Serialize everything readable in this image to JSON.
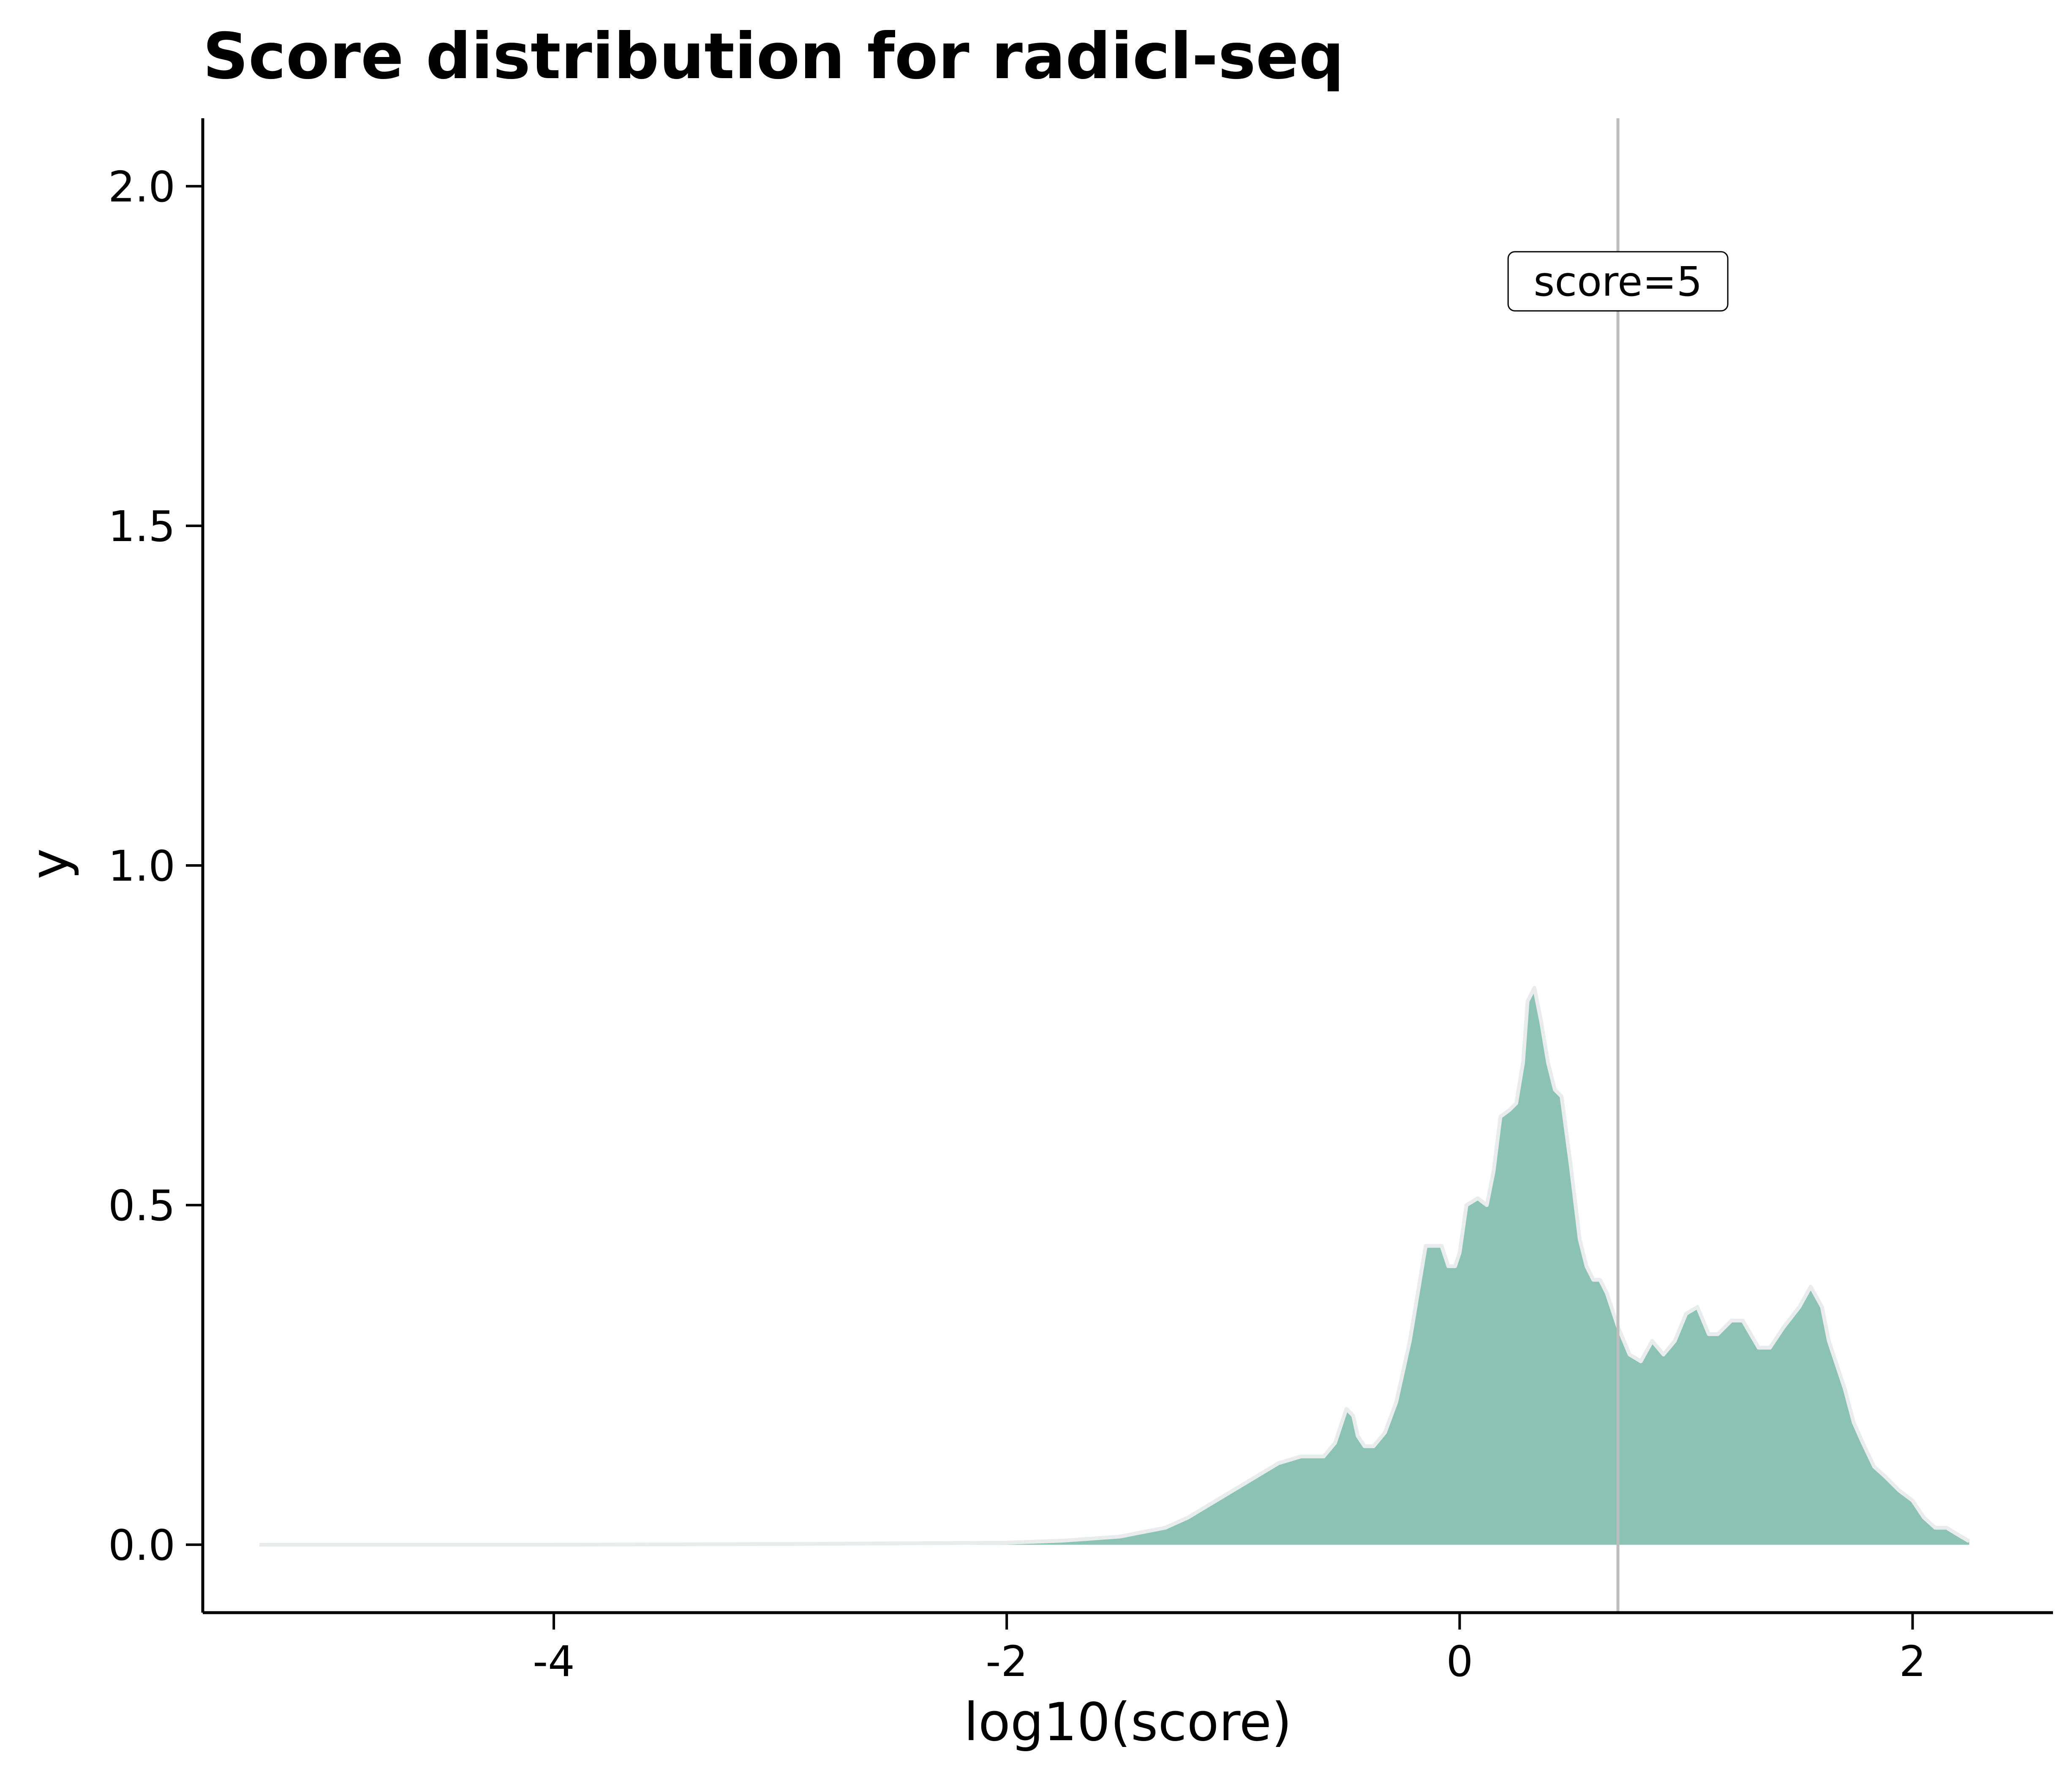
{
  "chart_data": {
    "type": "area",
    "title": "Score distribution for radicl-seq",
    "xlabel": "log10(score)",
    "ylabel": "y",
    "xlim": [
      -5.55,
      2.62
    ],
    "ylim": [
      -0.1,
      2.1
    ],
    "xticks": [
      {
        "value": -4,
        "label": "-4"
      },
      {
        "value": -2,
        "label": "-2"
      },
      {
        "value": 0,
        "label": "0"
      },
      {
        "value": 2,
        "label": "2"
      }
    ],
    "yticks": [
      {
        "value": 0.0,
        "label": "0.0"
      },
      {
        "value": 0.5,
        "label": "0.5"
      },
      {
        "value": 1.0,
        "label": "1.0"
      },
      {
        "value": 1.5,
        "label": "1.5"
      },
      {
        "value": 2.0,
        "label": "2.0"
      }
    ],
    "grid": false,
    "series": [
      {
        "fill_color": "#8bc2b4",
        "line_color": "#e8ecec",
        "x": [
          -5.3,
          -4.0,
          -3.0,
          -2.5,
          -2.0,
          -1.75,
          -1.5,
          -1.3,
          -1.2,
          -1.1,
          -1.0,
          -0.9,
          -0.8,
          -0.75,
          -0.7,
          -0.6,
          -0.55,
          -0.5,
          -0.47,
          -0.45,
          -0.42,
          -0.38,
          -0.33,
          -0.28,
          -0.22,
          -0.15,
          -0.08,
          -0.05,
          -0.02,
          0.0,
          0.03,
          0.08,
          0.12,
          0.15,
          0.18,
          0.22,
          0.25,
          0.28,
          0.3,
          0.33,
          0.36,
          0.39,
          0.42,
          0.45,
          0.49,
          0.53,
          0.56,
          0.59,
          0.62,
          0.65,
          0.7,
          0.75,
          0.8,
          0.85,
          0.9,
          0.95,
          1.0,
          1.05,
          1.1,
          1.14,
          1.2,
          1.25,
          1.32,
          1.37,
          1.43,
          1.5,
          1.55,
          1.6,
          1.63,
          1.66,
          1.7,
          1.74,
          1.78,
          1.83,
          1.88,
          1.94,
          2.0,
          2.05,
          2.1,
          2.15,
          2.2,
          2.25
        ],
        "y": [
          0.0,
          0.0,
          0.001,
          0.002,
          0.003,
          0.006,
          0.012,
          0.025,
          0.04,
          0.06,
          0.08,
          0.1,
          0.12,
          0.125,
          0.13,
          0.13,
          0.15,
          0.2,
          0.19,
          0.16,
          0.145,
          0.145,
          0.165,
          0.21,
          0.3,
          0.44,
          0.44,
          0.41,
          0.41,
          0.43,
          0.5,
          0.51,
          0.5,
          0.55,
          0.63,
          0.64,
          0.65,
          0.71,
          0.8,
          0.82,
          0.77,
          0.71,
          0.67,
          0.66,
          0.56,
          0.45,
          0.41,
          0.39,
          0.39,
          0.37,
          0.32,
          0.28,
          0.27,
          0.3,
          0.28,
          0.3,
          0.34,
          0.35,
          0.31,
          0.31,
          0.33,
          0.33,
          0.29,
          0.29,
          0.32,
          0.35,
          0.38,
          0.35,
          0.3,
          0.27,
          0.23,
          0.18,
          0.15,
          0.115,
          0.1,
          0.08,
          0.065,
          0.04,
          0.025,
          0.025,
          0.015,
          0.005
        ]
      }
    ],
    "vline": {
      "x": 0.699,
      "color": "#bdbdbd"
    },
    "annotation": {
      "text": "score=5",
      "x": 0.699,
      "y": 1.86
    }
  }
}
